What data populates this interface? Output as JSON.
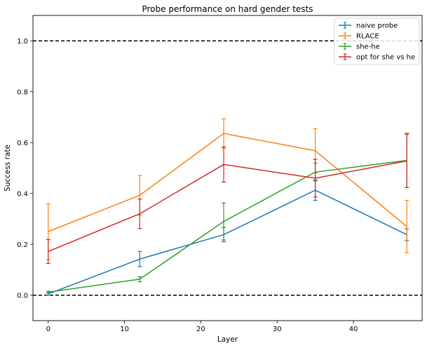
{
  "chart_data": {
    "type": "line",
    "title": "Probe performance on hard gender tests",
    "xlabel": "Layer",
    "ylabel": "Success rate",
    "xlim": [
      -2,
      49
    ],
    "ylim": [
      -0.1,
      1.1
    ],
    "xticks": [
      0,
      10,
      20,
      30,
      40
    ],
    "yticks": [
      0.0,
      0.2,
      0.4,
      0.6,
      0.8,
      1.0
    ],
    "xtick_labels": [
      "0",
      "10",
      "20",
      "30",
      "40"
    ],
    "ytick_labels": [
      "0.0",
      "0.2",
      "0.4",
      "0.6",
      "0.8",
      "1.0"
    ],
    "reference_lines": [
      0.0,
      1.0
    ],
    "legend_position": "top-right",
    "series": [
      {
        "name": "naive probe",
        "color": "#1f77b4",
        "x": [
          0,
          12,
          23,
          35,
          47
        ],
        "y": [
          0.005,
          0.142,
          0.238,
          0.413,
          0.238
        ],
        "err": [
          0.005,
          0.03,
          0.028,
          0.04,
          0.023
        ]
      },
      {
        "name": "RLACE",
        "color": "#ff7f0e",
        "x": [
          0,
          12,
          23,
          35,
          47
        ],
        "y": [
          0.25,
          0.393,
          0.636,
          0.568,
          0.27
        ],
        "err": [
          0.11,
          0.078,
          0.058,
          0.087,
          0.103
        ]
      },
      {
        "name": "she-he",
        "color": "#2ca02c",
        "x": [
          0,
          12,
          23,
          35,
          47
        ],
        "y": [
          0.012,
          0.063,
          0.29,
          0.484,
          0.53
        ],
        "err": [
          0.004,
          0.01,
          0.073,
          0.035,
          0.107
        ]
      },
      {
        "name": "opt for she vs he",
        "color": "#d62728",
        "x": [
          0,
          12,
          23,
          35,
          47
        ],
        "y": [
          0.172,
          0.32,
          0.514,
          0.46,
          0.528
        ],
        "err": [
          0.047,
          0.058,
          0.069,
          0.074,
          0.105
        ]
      }
    ]
  }
}
